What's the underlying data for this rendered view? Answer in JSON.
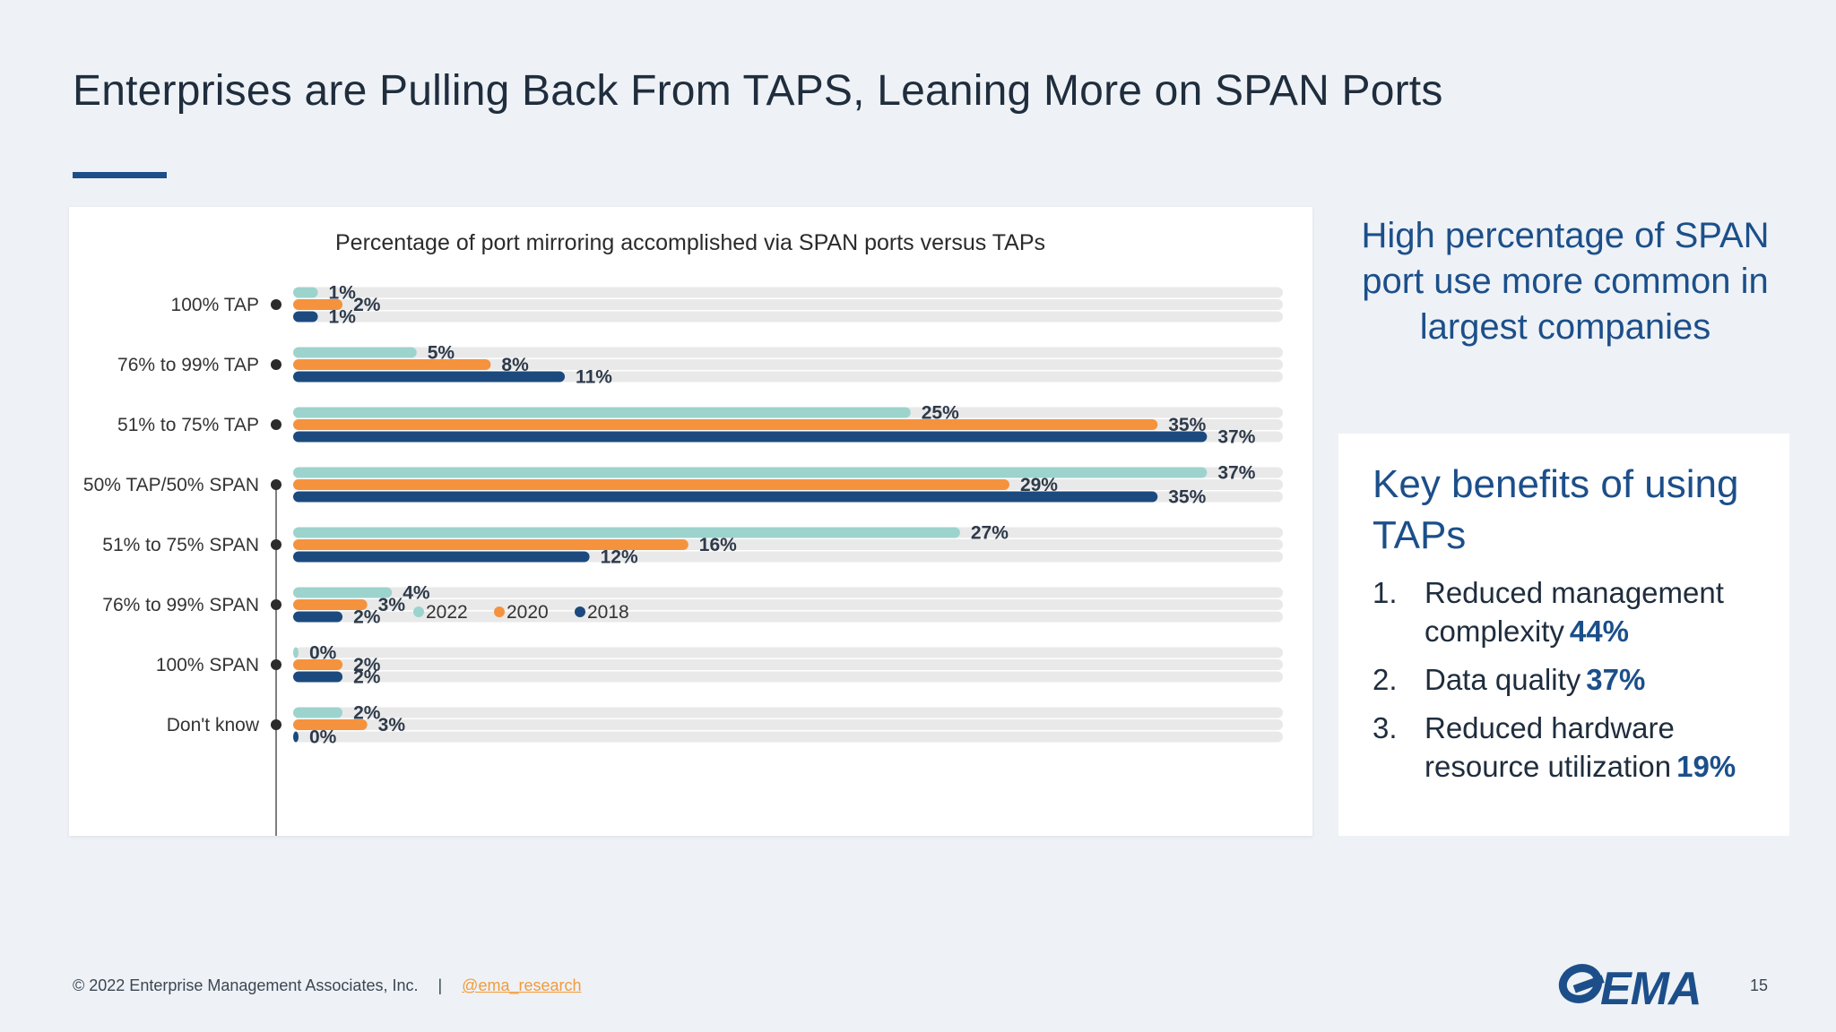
{
  "slide": {
    "title": "Enterprises are Pulling Back From TAPS, Leaning More on SPAN Ports",
    "page_number": "15"
  },
  "callout": {
    "text": "High percentage of SPAN port use more common in largest companies"
  },
  "benefits": {
    "heading": "Key benefits of using TAPs",
    "items": [
      {
        "num": "1.",
        "text": "Reduced management complexity",
        "pct": "44%"
      },
      {
        "num": "2.",
        "text": "Data quality",
        "pct": "37%"
      },
      {
        "num": "3.",
        "text": "Reduced hardware resource utilization",
        "pct": "19%"
      }
    ]
  },
  "footer": {
    "copyright": "© 2022 Enterprise Management Associates, Inc.",
    "separator": "|",
    "handle": "@ema_research"
  },
  "logo": {
    "text": "EMA",
    "icon": "ema-swoosh-icon"
  },
  "colors": {
    "2022": "#9dd3cd",
    "2020": "#f5923e",
    "2018": "#1c4a7e",
    "accent": "#1c4f8a",
    "track": "#e9e9e9"
  },
  "chart_data": {
    "type": "bar",
    "orientation": "horizontal",
    "title": "Percentage of port mirroring accomplished via SPAN ports versus TAPs",
    "categories": [
      "100% TAP",
      "76% to 99% TAP",
      "51% to 75% TAP",
      "50% TAP/50% SPAN",
      "51% to 75% SPAN",
      "76% to 99% SPAN",
      "100% SPAN",
      "Don't know"
    ],
    "series": [
      {
        "name": "2022",
        "values": [
          1,
          5,
          25,
          37,
          27,
          4,
          0,
          2
        ]
      },
      {
        "name": "2020",
        "values": [
          2,
          8,
          35,
          29,
          16,
          3,
          2,
          3
        ]
      },
      {
        "name": "2018",
        "values": [
          1,
          11,
          37,
          35,
          12,
          2,
          2,
          0
        ]
      }
    ],
    "value_suffix": "%",
    "xlim": [
      0,
      40
    ],
    "legend": "bottom",
    "grid": false
  }
}
